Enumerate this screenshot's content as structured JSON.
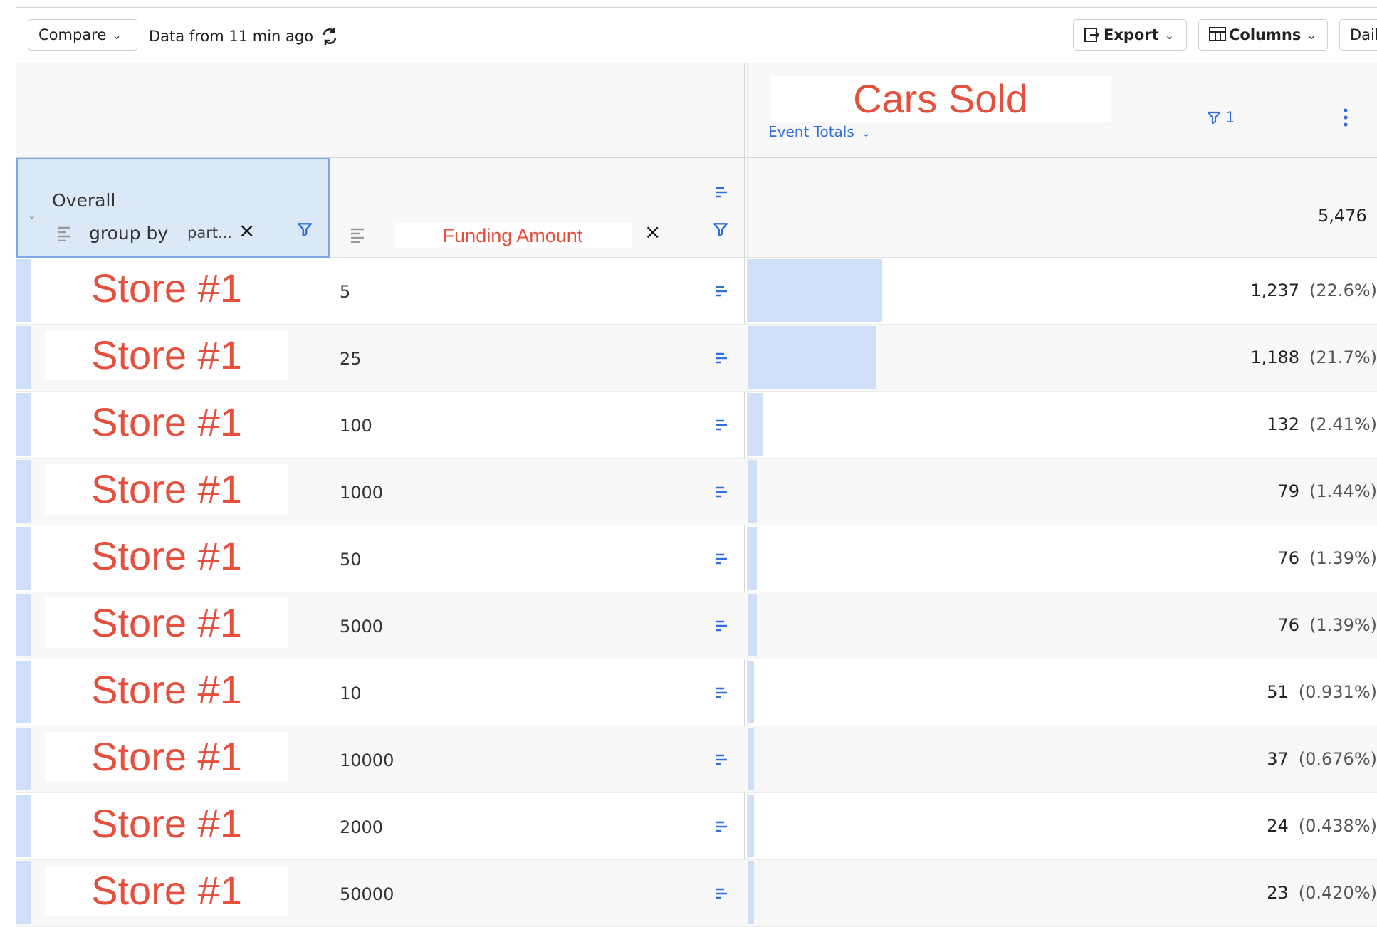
{
  "toolbar": {
    "compare_label": "Compare",
    "data_freshness": "Data from 11 min ago",
    "export_label": "Export",
    "columns_label": "Columns",
    "daily_label": "Dail"
  },
  "metric": {
    "name": "Cars Sold",
    "aggregation": "Event Totals",
    "filter_count": "1"
  },
  "segment": {
    "label": "Overall",
    "group_by_label": "group by",
    "group_by_value": "part...",
    "breakdown_property": "Funding Amount",
    "total": "5,476"
  },
  "rows": [
    {
      "name": "Store #1",
      "funding": "5",
      "count": "1,237",
      "pct": "(22.6%)",
      "share": 0.226
    },
    {
      "name": "Store #1",
      "funding": "25",
      "count": "1,188",
      "pct": "(21.7%)",
      "share": 0.217
    },
    {
      "name": "Store #1",
      "funding": "100",
      "count": "132",
      "pct": "(2.41%)",
      "share": 0.0241
    },
    {
      "name": "Store #1",
      "funding": "1000",
      "count": "79",
      "pct": "(1.44%)",
      "share": 0.0144
    },
    {
      "name": "Store #1",
      "funding": "50",
      "count": "76",
      "pct": "(1.39%)",
      "share": 0.0139
    },
    {
      "name": "Store #1",
      "funding": "5000",
      "count": "76",
      "pct": "(1.39%)",
      "share": 0.0139
    },
    {
      "name": "Store #1",
      "funding": "10",
      "count": "51",
      "pct": "(0.931%)",
      "share": 0.00931
    },
    {
      "name": "Store #1",
      "funding": "10000",
      "count": "37",
      "pct": "(0.676%)",
      "share": 0.00676
    },
    {
      "name": "Store #1",
      "funding": "2000",
      "count": "24",
      "pct": "(0.438%)",
      "share": 0.00438
    },
    {
      "name": "Store #1",
      "funding": "50000",
      "count": "23",
      "pct": "(0.420%)",
      "share": 0.0042
    }
  ],
  "colors": {
    "accent_blue": "#2f6fdd",
    "bar_fill": "#cfdff7",
    "highlight_red": "#e5503e"
  },
  "icons": [
    "chevron-down-icon",
    "refresh-icon",
    "export-icon",
    "columns-icon",
    "filter-icon",
    "kebab-icon",
    "sort-lines-icon",
    "close-icon"
  ]
}
